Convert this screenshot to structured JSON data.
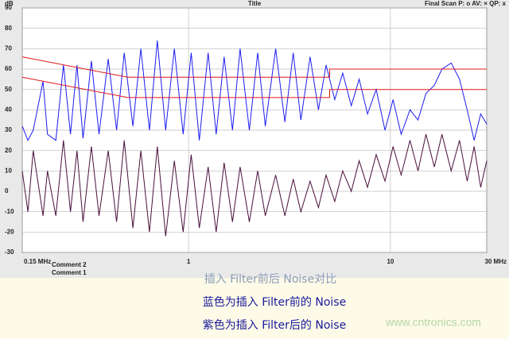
{
  "chart_data": {
    "type": "line",
    "title": "Title",
    "y_label": "dB",
    "legend_text": "Final Scan P: o  AV: ×  QP: x",
    "annotations": [
      "Comment 2",
      "Comment 1"
    ],
    "xlog": true,
    "grid": true,
    "xlim": [
      0.15,
      30
    ],
    "ylim": [
      -30,
      90
    ],
    "xticks": [
      {
        "value": 0.15,
        "label": "0.15 MHz"
      },
      1,
      10,
      {
        "value": 30,
        "label": "30 MHz"
      }
    ],
    "yticks": [
      -30,
      -20,
      -10,
      0,
      10,
      20,
      30,
      40,
      50,
      60,
      70,
      80,
      90
    ],
    "x": [
      0.15,
      0.16,
      0.17,
      0.19,
      0.2,
      0.22,
      0.24,
      0.26,
      0.28,
      0.3,
      0.33,
      0.36,
      0.4,
      0.44,
      0.48,
      0.53,
      0.58,
      0.64,
      0.7,
      0.77,
      0.85,
      0.94,
      1.03,
      1.13,
      1.25,
      1.37,
      1.5,
      1.65,
      1.8,
      2,
      2.2,
      2.4,
      2.7,
      3,
      3.3,
      3.6,
      4,
      4.4,
      4.8,
      5.3,
      5.8,
      6.4,
      7,
      7.7,
      8.5,
      9.4,
      10.3,
      11.3,
      12.5,
      13.7,
      15,
      16.5,
      18,
      20,
      22,
      24,
      26,
      28,
      30
    ],
    "series": [
      {
        "color": "#1c1cf0",
        "values": [
          32,
          25,
          30,
          54,
          28,
          25,
          62,
          28,
          62,
          26,
          64,
          28,
          65,
          30,
          68,
          32,
          70,
          30,
          74,
          30,
          70,
          28,
          68,
          25,
          68,
          28,
          66,
          30,
          70,
          30,
          68,
          32,
          70,
          34,
          68,
          35,
          66,
          40,
          62,
          45,
          58,
          42,
          55,
          38,
          50,
          30,
          45,
          28,
          40,
          35,
          48,
          52,
          60,
          63,
          55,
          40,
          25,
          38,
          33
        ]
      },
      {
        "color": "#4a0f3c",
        "values": [
          10,
          -10,
          20,
          -12,
          10,
          -12,
          25,
          -10,
          20,
          -15,
          22,
          -12,
          20,
          -15,
          25,
          -18,
          20,
          -20,
          22,
          -22,
          15,
          -20,
          18,
          -18,
          12,
          -20,
          14,
          -15,
          12,
          -15,
          10,
          -12,
          8,
          -12,
          6,
          -10,
          5,
          -8,
          8,
          -5,
          10,
          0,
          15,
          2,
          18,
          5,
          22,
          8,
          25,
          10,
          28,
          12,
          28,
          10,
          25,
          5,
          22,
          2,
          15
        ]
      },
      {
        "color": "#e01818",
        "x": [
          0.15,
          0.5,
          5,
          5,
          30
        ],
        "values": [
          66,
          56,
          56,
          60,
          60
        ]
      },
      {
        "color": "#e01818",
        "x": [
          0.15,
          0.5,
          5,
          5,
          30
        ],
        "values": [
          56,
          46,
          46,
          50,
          50
        ]
      }
    ]
  },
  "captions": [
    "插入 Filter前后 Noise对比",
    "蓝色为插入 Filter前的  Noise",
    "紫色为插入  Filter后的  Noise"
  ],
  "watermark": "www.cntronics.com"
}
